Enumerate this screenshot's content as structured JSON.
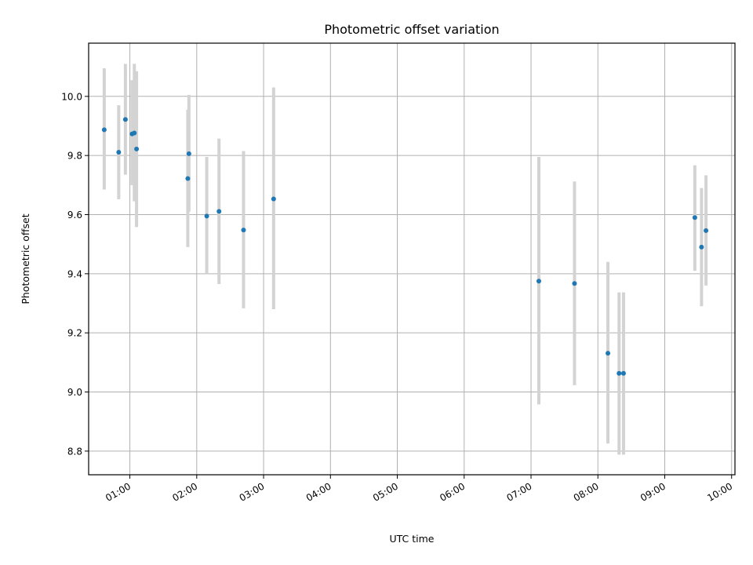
{
  "chart_data": {
    "type": "scatter",
    "title": "Photometric offset variation",
    "xlabel": "UTC time",
    "ylabel": "Photometric offset",
    "x_axis": {
      "type": "time",
      "range": [
        "00:23",
        "10:03"
      ],
      "ticks": [
        "01:00",
        "02:00",
        "03:00",
        "04:00",
        "05:00",
        "06:00",
        "07:00",
        "08:00",
        "09:00",
        "10:00"
      ]
    },
    "y_axis": {
      "range": [
        8.72,
        10.18
      ],
      "ticks": [
        "8.8",
        "9.0",
        "9.2",
        "9.4",
        "9.6",
        "9.8",
        "10.0"
      ]
    },
    "grid": true,
    "colors": {
      "points": "#1f77b4",
      "error_bars": "#d3d3d3",
      "grid": "#b0b0b0"
    },
    "points": [
      {
        "x": "00:37",
        "y": 9.887,
        "yerr": [
          9.685,
          10.095
        ]
      },
      {
        "x": "00:50",
        "y": 9.811,
        "yerr": [
          9.652,
          9.97
        ]
      },
      {
        "x": "00:56",
        "y": 9.922,
        "yerr": [
          9.735,
          10.11
        ]
      },
      {
        "x": "01:02",
        "y": 9.873,
        "yerr": [
          9.7,
          10.055
        ]
      },
      {
        "x": "01:04",
        "y": 9.876,
        "yerr": [
          9.645,
          10.11
        ]
      },
      {
        "x": "01:06",
        "y": 9.822,
        "yerr": [
          9.558,
          10.085
        ]
      },
      {
        "x": "01:52",
        "y": 9.722,
        "yerr": [
          9.49,
          9.955
        ]
      },
      {
        "x": "01:53",
        "y": 9.806,
        "yerr": [
          9.61,
          10.005
        ]
      },
      {
        "x": "02:09",
        "y": 9.595,
        "yerr": [
          9.4,
          9.795
        ]
      },
      {
        "x": "02:20",
        "y": 9.611,
        "yerr": [
          9.365,
          9.857
        ]
      },
      {
        "x": "02:42",
        "y": 9.548,
        "yerr": [
          9.283,
          9.815
        ]
      },
      {
        "x": "03:09",
        "y": 9.653,
        "yerr": [
          9.28,
          10.03
        ]
      },
      {
        "x": "07:07",
        "y": 9.375,
        "yerr": [
          8.958,
          9.795
        ]
      },
      {
        "x": "07:39",
        "y": 9.367,
        "yerr": [
          9.023,
          9.712
        ]
      },
      {
        "x": "08:09",
        "y": 9.131,
        "yerr": [
          8.826,
          9.44
        ]
      },
      {
        "x": "08:19",
        "y": 9.063,
        "yerr": [
          8.788,
          9.337
        ]
      },
      {
        "x": "08:23",
        "y": 9.063,
        "yerr": [
          8.788,
          9.337
        ]
      },
      {
        "x": "09:27",
        "y": 9.59,
        "yerr": [
          9.41,
          9.767
        ]
      },
      {
        "x": "09:33",
        "y": 9.49,
        "yerr": [
          9.29,
          9.69
        ]
      },
      {
        "x": "09:37",
        "y": 9.546,
        "yerr": [
          9.36,
          9.733
        ]
      }
    ]
  }
}
